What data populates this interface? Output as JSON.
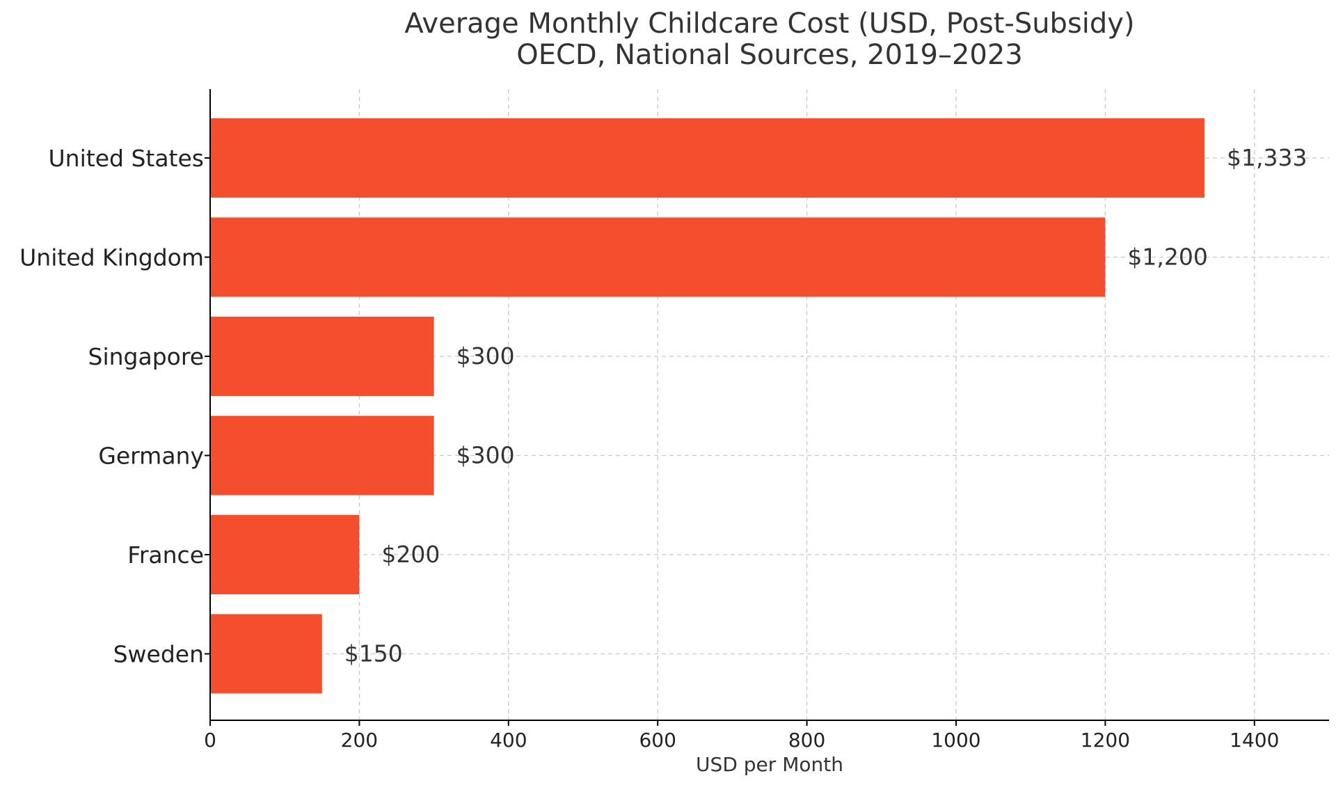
{
  "chart_data": {
    "type": "bar",
    "orientation": "horizontal",
    "title": "Average Monthly Childcare Cost (USD, Post-Subsidy)",
    "subtitle": "OECD, National Sources, 2019–2023",
    "xlabel": "USD per Month",
    "ylabel": "",
    "categories": [
      "United States",
      "United Kingdom",
      "Singapore",
      "Germany",
      "France",
      "Sweden"
    ],
    "values": [
      1333,
      1200,
      300,
      300,
      200,
      150
    ],
    "value_labels": [
      "$1,333",
      "$1,200",
      "$300",
      "$300",
      "$200",
      "$150"
    ],
    "xlim": [
      0,
      1500
    ],
    "xticks": [
      0,
      200,
      400,
      600,
      800,
      1000,
      1200,
      1400
    ],
    "xtick_labels": [
      "0",
      "200",
      "400",
      "600",
      "800",
      "1000",
      "1200",
      "1400"
    ],
    "grid": true,
    "grid_style": "dashed",
    "bar_color": "#f44e2f"
  }
}
